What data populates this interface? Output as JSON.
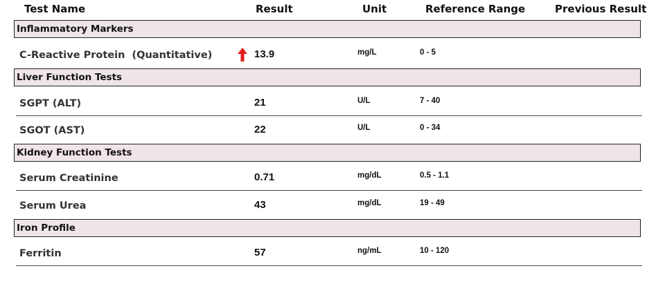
{
  "header": {
    "test_name": "Test Name",
    "result": "Result",
    "unit": "Unit",
    "reference_range": "Reference Range",
    "previous_result": "Previous Result"
  },
  "sections": [
    {
      "title": "Inflammatory Markers",
      "tests": [
        {
          "name": "C-Reactive Protein  (Quantitative)",
          "result": "13.9",
          "unit": "mg/L",
          "range": "0 - 5",
          "flag": "high-arrow-icon",
          "previous": ""
        }
      ]
    },
    {
      "title": "Liver Function Tests",
      "tests": [
        {
          "name": "SGPT (ALT)",
          "result": "21",
          "unit": "U/L",
          "range": "7 - 40",
          "flag": "",
          "previous": ""
        },
        {
          "name": "SGOT (AST)",
          "result": "22",
          "unit": "U/L",
          "range": "0 - 34",
          "flag": "",
          "previous": ""
        }
      ]
    },
    {
      "title": "Kidney Function Tests",
      "tests": [
        {
          "name": "Serum Creatinine",
          "result": "0.71",
          "unit": "mg/dL",
          "range": "0.5 - 1.1",
          "flag": "",
          "previous": ""
        },
        {
          "name": "Serum Urea",
          "result": "43",
          "unit": "mg/dL",
          "range": "19 - 49",
          "flag": "",
          "previous": ""
        }
      ]
    },
    {
      "title": "Iron Profile",
      "tests": [
        {
          "name": "Ferritin",
          "result": "57",
          "unit": "ng/mL",
          "range": "10 - 120",
          "flag": "",
          "previous": ""
        }
      ]
    }
  ],
  "colors": {
    "section_bg": "#efe5e8",
    "flag_high": "#e01b1b"
  }
}
